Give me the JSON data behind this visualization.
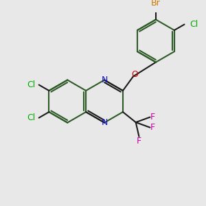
{
  "bg_color": "#e8e8e8",
  "bond_color": "#2d5a27",
  "bond_color_dark": "#1a1a1a",
  "bond_width": 1.5,
  "colors": {
    "Cl": "#00aa00",
    "Br": "#cc7700",
    "N": "#1111cc",
    "O": "#cc0000",
    "F": "#cc00aa",
    "C": "#2d5a27"
  }
}
